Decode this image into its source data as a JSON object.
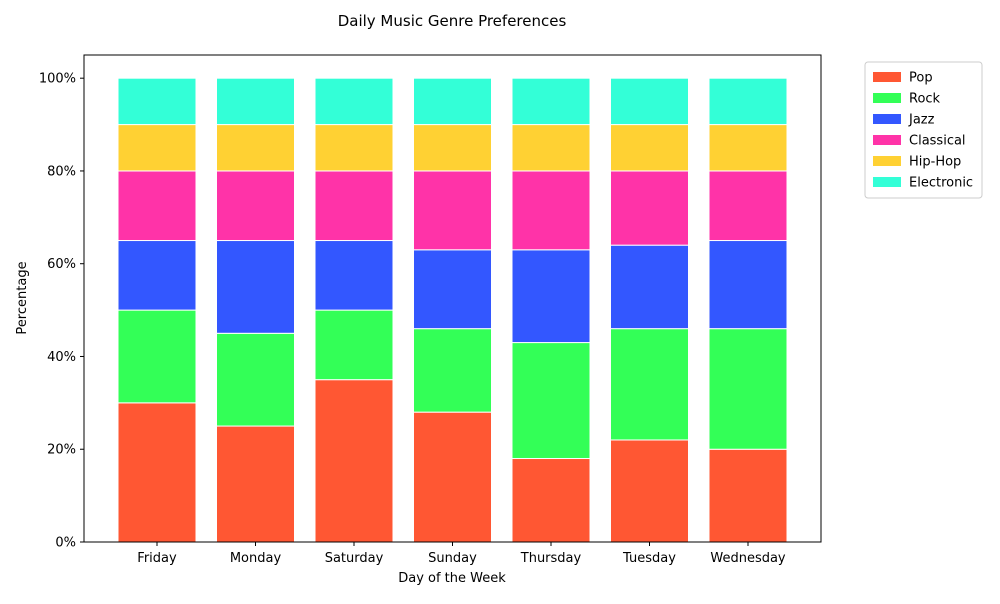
{
  "chart_data": {
    "type": "bar",
    "stacked": true,
    "title": "Daily Music Genre Preferences",
    "xlabel": "Day of the Week",
    "ylabel": "Percentage",
    "ylim": [
      0,
      105
    ],
    "yticks": [
      0,
      20,
      40,
      60,
      80,
      100
    ],
    "ytick_labels": [
      "0%",
      "20%",
      "40%",
      "60%",
      "80%",
      "100%"
    ],
    "legend_position": "outside top-right",
    "grid": false,
    "categories": [
      "Friday",
      "Monday",
      "Saturday",
      "Sunday",
      "Thursday",
      "Tuesday",
      "Wednesday"
    ],
    "series": [
      {
        "name": "Pop",
        "color": "#ff5733",
        "values": [
          30,
          25,
          35,
          28,
          18,
          22,
          20
        ]
      },
      {
        "name": "Rock",
        "color": "#33ff57",
        "values": [
          20,
          20,
          15,
          18,
          25,
          24,
          26
        ]
      },
      {
        "name": "Jazz",
        "color": "#3357ff",
        "values": [
          15,
          20,
          15,
          17,
          20,
          18,
          19
        ]
      },
      {
        "name": "Classical",
        "color": "#ff33a8",
        "values": [
          15,
          15,
          15,
          17,
          17,
          16,
          15
        ]
      },
      {
        "name": "Hip-Hop",
        "color": "#ffd133",
        "values": [
          10,
          10,
          10,
          10,
          10,
          10,
          10
        ]
      },
      {
        "name": "Electronic",
        "color": "#33ffd7",
        "values": [
          10,
          10,
          10,
          10,
          10,
          10,
          10
        ]
      }
    ]
  }
}
